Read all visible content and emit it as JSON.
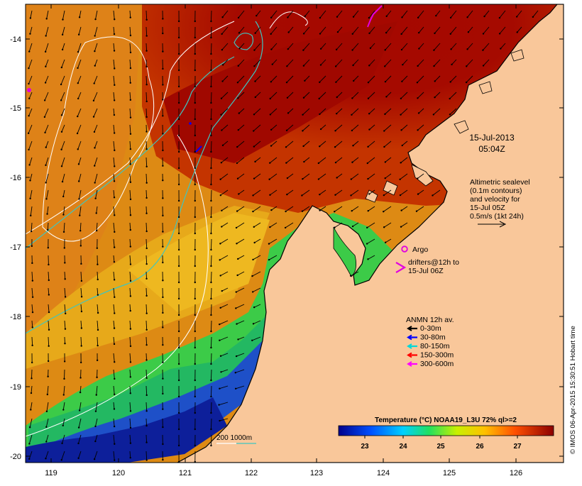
{
  "map": {
    "date_label": "15-Jul-2013",
    "time_label": "05:04Z",
    "lat_ticks": [
      "-14",
      "-15",
      "-16",
      "-17",
      "-18",
      "-19",
      "-20"
    ],
    "lon_ticks": [
      "119",
      "120",
      "121",
      "122",
      "123",
      "124",
      "125",
      "126"
    ],
    "altimetry": {
      "line1": "Altimetric sealevel",
      "line2": "(0.1m contours)",
      "line3": "and velocity for",
      "line4": "15-Jul 05Z",
      "scale": "0.5m/s (1kt 24h)"
    },
    "argo_label": "Argo",
    "drifters": {
      "line1": "drifters@12h to",
      "line2": "15-Jul 06Z"
    },
    "anmn": {
      "title": "ANMN 12h av.",
      "items": [
        {
          "label": "0-30m",
          "color": "#000000"
        },
        {
          "label": "30-80m",
          "color": "#0000ff"
        },
        {
          "label": "80-150m",
          "color": "#00d8d8"
        },
        {
          "label": "150-300m",
          "color": "#ff0000"
        },
        {
          "label": "300-600m",
          "color": "#ff00ff"
        }
      ]
    },
    "isobath_label": "200  1000m",
    "colorbar": {
      "title": "Temperature (°C) NOAA19_L3U 72% ql>=2",
      "ticks": [
        "23",
        "24",
        "25",
        "26",
        "27"
      ]
    },
    "credit": "© IMOS 06-Apr-2015 15:30:51 Hobart time",
    "colors": {
      "land": "#f9c79a",
      "warm": "#a50a00",
      "mid": "#e08a16",
      "cool": "#3fcf45",
      "cold": "#1d3fb0",
      "altimetry_contour": "#ffffff",
      "isobath": "#3dc6c0",
      "argo": "#e000e0"
    }
  }
}
